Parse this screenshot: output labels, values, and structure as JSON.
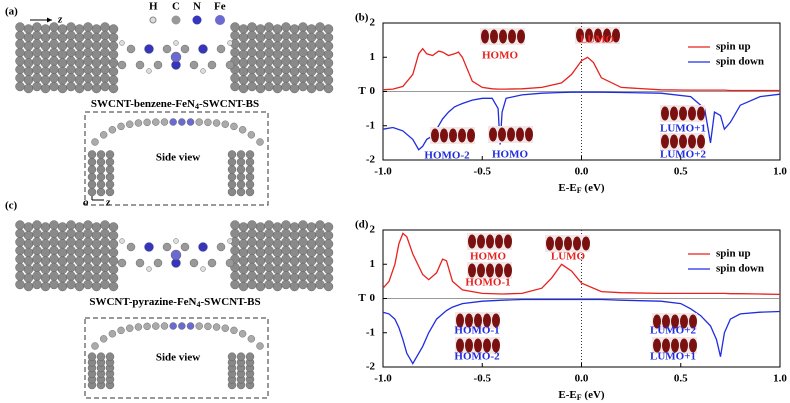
{
  "element_legend": [
    "H",
    "C",
    "N",
    "Fe"
  ],
  "z_arrow": "z",
  "structures": [
    {
      "label": "(a)",
      "caption": "SWCNT-benzene-FeN",
      "caption_sub": "4",
      "caption_end": "-SWCNT-BS",
      "view": "Side view",
      "axes": [
        "y",
        "o",
        "z"
      ]
    },
    {
      "label": "(c)",
      "caption": "SWCNT-pyrazine-FeN",
      "caption_sub": "4",
      "caption_end": "-SWCNT-BS",
      "view": "Side view"
    }
  ],
  "chart_data": [
    {
      "type": "line",
      "panel": "(b)",
      "ylabel": "T",
      "xlabel": "E-E",
      "xlabel_sub": "F",
      "xlabel_end": " (eV)",
      "x": [
        -1,
        -0.95,
        -0.9,
        -0.85,
        -0.82,
        -0.8,
        -0.78,
        -0.75,
        -0.72,
        -0.7,
        -0.67,
        -0.64,
        -0.62,
        -0.6,
        -0.55,
        -0.5,
        -0.45,
        -0.42,
        -0.41,
        -0.4,
        -0.38,
        -0.3,
        -0.2,
        -0.1,
        -0.05,
        0,
        0.03,
        0.06,
        0.1,
        0.2,
        0.4,
        0.55,
        0.62,
        0.65,
        0.67,
        0.7,
        0.72,
        0.75,
        0.8,
        0.9,
        1
      ],
      "series": [
        {
          "name": "spin up",
          "color": "#e8221f",
          "values": [
            0.05,
            0.07,
            0.15,
            0.5,
            1.1,
            1.25,
            1.1,
            1.05,
            1.18,
            1.15,
            1.05,
            1.1,
            1.15,
            1.0,
            0.3,
            0.12,
            0.08,
            0.07,
            0.07,
            0.07,
            0.07,
            0.08,
            0.12,
            0.25,
            0.5,
            0.9,
            1.0,
            0.85,
            0.4,
            0.12,
            0.05,
            0.04,
            0.04,
            0.04,
            0.04,
            0.04,
            0.04,
            0.03,
            0.03,
            0.03,
            0.03
          ]
        },
        {
          "name": "spin down",
          "color": "#1f2de0",
          "values": [
            -1.1,
            -1.05,
            -1.15,
            -1.4,
            -1.7,
            -1.6,
            -1.4,
            -1.3,
            -1.0,
            -0.8,
            -0.6,
            -0.45,
            -0.4,
            -0.35,
            -0.25,
            -0.2,
            -0.2,
            -0.5,
            -1.55,
            -0.6,
            -0.2,
            -0.1,
            -0.05,
            -0.03,
            -0.02,
            -0.02,
            -0.02,
            -0.02,
            -0.02,
            -0.03,
            -0.05,
            -0.15,
            -0.5,
            -1.5,
            -0.6,
            -0.7,
            -1.1,
            -0.9,
            -0.4,
            -0.15,
            -0.08
          ]
        }
      ],
      "xlim": [
        -1,
        1
      ],
      "ylim": [
        -2,
        2
      ],
      "xticks": [
        {
          "value": -1,
          "label": "-1.0"
        },
        {
          "value": -0.5,
          "label": "-0.5"
        },
        {
          "value": 0,
          "label": "0.0"
        },
        {
          "value": 0.5,
          "label": "0.5"
        },
        {
          "value": 1,
          "label": "1.0"
        }
      ],
      "yticks": [
        -2,
        -1,
        0,
        1,
        2
      ],
      "legend": "upper right",
      "annotations": [
        {
          "text": "HOMO",
          "color": "#e8221f"
        },
        {
          "text": "LUMO",
          "color": "#e8221f"
        },
        {
          "text": "HOMO-2",
          "color": "#1f2de0"
        },
        {
          "text": "HOMO",
          "color": "#1f2de0"
        },
        {
          "text": "LUMO+1",
          "color": "#1f2de0"
        },
        {
          "text": "LUMO+2",
          "color": "#1f2de0"
        }
      ]
    },
    {
      "type": "line",
      "panel": "(d)",
      "ylabel": "T",
      "xlabel": "E-E",
      "xlabel_sub": "F",
      "xlabel_end": " (eV)",
      "x": [
        -1,
        -0.97,
        -0.94,
        -0.92,
        -0.9,
        -0.88,
        -0.85,
        -0.8,
        -0.77,
        -0.73,
        -0.7,
        -0.68,
        -0.65,
        -0.6,
        -0.5,
        -0.4,
        -0.3,
        -0.2,
        -0.15,
        -0.1,
        -0.05,
        0,
        0.1,
        0.2,
        0.4,
        0.5,
        0.55,
        0.6,
        0.65,
        0.68,
        0.7,
        0.72,
        0.75,
        0.8,
        0.9,
        1
      ],
      "series": [
        {
          "name": "spin up",
          "color": "#e8221f",
          "values": [
            0.3,
            0.5,
            1.0,
            1.6,
            1.9,
            1.8,
            1.3,
            0.7,
            0.55,
            0.75,
            1.15,
            1.1,
            0.5,
            0.25,
            0.15,
            0.13,
            0.15,
            0.3,
            0.6,
            1.0,
            0.8,
            0.45,
            0.2,
            0.17,
            0.15,
            0.15,
            0.15,
            0.15,
            0.15,
            0.15,
            0.15,
            0.15,
            0.14,
            0.14,
            0.13,
            0.12
          ]
        },
        {
          "name": "spin down",
          "color": "#1f2de0",
          "values": [
            -0.4,
            -0.45,
            -0.6,
            -0.85,
            -1.2,
            -1.6,
            -1.9,
            -1.4,
            -1.0,
            -0.6,
            -0.45,
            -0.35,
            -0.25,
            -0.15,
            -0.08,
            -0.05,
            -0.03,
            -0.03,
            -0.03,
            -0.03,
            -0.03,
            -0.03,
            -0.03,
            -0.05,
            -0.08,
            -0.15,
            -0.3,
            -0.5,
            -0.8,
            -1.2,
            -1.7,
            -1.0,
            -0.6,
            -0.45,
            -0.4,
            -0.38
          ]
        }
      ],
      "xlim": [
        -1,
        1
      ],
      "ylim": [
        -2,
        2
      ],
      "xticks": [
        {
          "value": -1,
          "label": "-1.0"
        },
        {
          "value": -0.5,
          "label": "-0.5"
        },
        {
          "value": 0,
          "label": "0.0"
        },
        {
          "value": 0.5,
          "label": "0.5"
        },
        {
          "value": 1,
          "label": "1.0"
        }
      ],
      "yticks": [
        -2,
        -1,
        0,
        1,
        2
      ],
      "legend": "upper right",
      "annotations": [
        {
          "text": "HOMO",
          "color": "#e8221f"
        },
        {
          "text": "HOMO-1",
          "color": "#e8221f"
        },
        {
          "text": "LUMO",
          "color": "#e8221f"
        },
        {
          "text": "HOMO-1",
          "color": "#1f2de0"
        },
        {
          "text": "HOMO-2",
          "color": "#1f2de0"
        },
        {
          "text": "LUMO+2",
          "color": "#1f2de0"
        },
        {
          "text": "LUMO+1",
          "color": "#1f2de0"
        }
      ]
    }
  ]
}
